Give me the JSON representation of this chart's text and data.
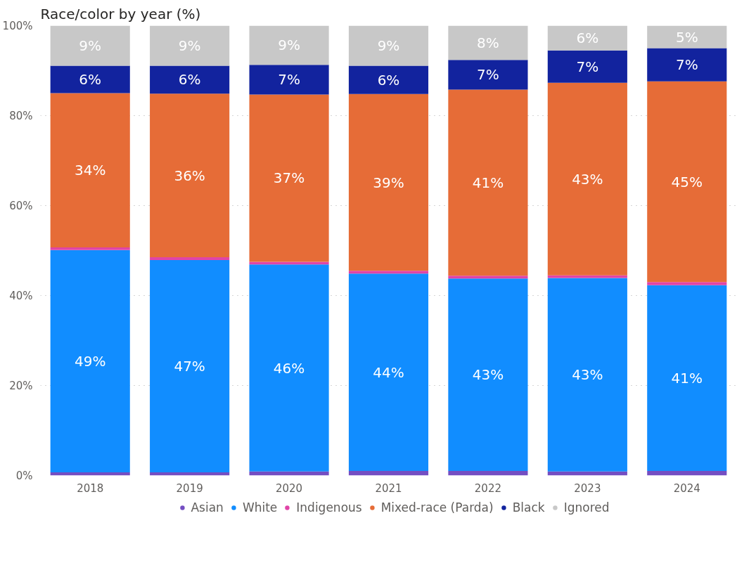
{
  "chart_data": {
    "type": "bar",
    "title": "Race/color by year (%)",
    "stacked": true,
    "categories": [
      "2018",
      "2019",
      "2020",
      "2021",
      "2022",
      "2023",
      "2024"
    ],
    "ylim": [
      0,
      100
    ],
    "yticks": [
      {
        "value": 0,
        "label": "0%"
      },
      {
        "value": 20,
        "label": "20%"
      },
      {
        "value": 40,
        "label": "40%"
      },
      {
        "value": 60,
        "label": "60%"
      },
      {
        "value": 80,
        "label": "80%"
      },
      {
        "value": 100,
        "label": "100%"
      }
    ],
    "grid": "y",
    "legend": "bottom",
    "series": [
      {
        "name": "Asian",
        "color": "#744ec2",
        "values": [
          0.7,
          0.7,
          0.9,
          1.0,
          1.0,
          0.9,
          1.0
        ]
      },
      {
        "name": "White",
        "color": "#118dff",
        "values": [
          49.4,
          47.2,
          46.0,
          43.9,
          42.8,
          43.0,
          41.3
        ],
        "value_labels": [
          "49%",
          "47%",
          "46%",
          "44%",
          "43%",
          "43%",
          "41%"
        ]
      },
      {
        "name": "Indigenous",
        "color": "#e044a7",
        "values": [
          0.6,
          0.6,
          0.6,
          0.6,
          0.6,
          0.6,
          0.7
        ]
      },
      {
        "name": "Mixed-race (Parda)",
        "color": "#e66c37",
        "values": [
          34.3,
          36.4,
          37.2,
          39.3,
          41.4,
          42.8,
          44.6
        ],
        "value_labels": [
          "34%",
          "36%",
          "37%",
          "39%",
          "41%",
          "43%",
          "45%"
        ]
      },
      {
        "name": "Black",
        "color": "#12239e",
        "values": [
          6.1,
          6.2,
          6.6,
          6.3,
          6.6,
          7.2,
          7.4
        ],
        "value_labels": [
          "6%",
          "6%",
          "7%",
          "6%",
          "7%",
          "7%",
          "7%"
        ]
      },
      {
        "name": "Ignored",
        "color": "#c8c8c8",
        "values": [
          8.9,
          8.9,
          8.7,
          8.9,
          7.6,
          5.5,
          5.0
        ],
        "value_labels": [
          "9%",
          "9%",
          "9%",
          "9%",
          "8%",
          "6%",
          "5%"
        ]
      }
    ]
  }
}
